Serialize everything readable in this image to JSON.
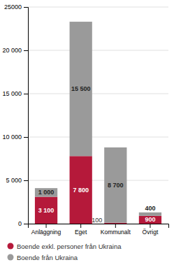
{
  "chart_data": {
    "type": "bar",
    "stacked": true,
    "data_labels": true,
    "grid": true,
    "legend": "bottom",
    "categories": [
      "Anläggning",
      "Eget",
      "Kommunalt",
      "Övrigt"
    ],
    "series": [
      {
        "name": "Boende exkl. personer från Ukraina",
        "color": "#b5193a",
        "values": [
          3100,
          7800,
          100,
          900
        ],
        "value_labels": [
          "3 100",
          "7 800",
          "100",
          "900"
        ]
      },
      {
        "name": "Boende från Ukraina",
        "color": "#9a9a9a",
        "values": [
          1000,
          15500,
          8700,
          400
        ],
        "value_labels": [
          "1 000",
          "15 500",
          "8 700",
          "400"
        ]
      }
    ],
    "ylim": [
      0,
      25000
    ],
    "yticks": [
      0,
      {
        "value": 5000,
        "label": "5 000"
      },
      {
        "value": 10000,
        "label": "10 000"
      },
      {
        "value": 15000,
        "label": "15 000"
      },
      {
        "value": 20000,
        "label": "20 000"
      },
      25000
    ]
  }
}
